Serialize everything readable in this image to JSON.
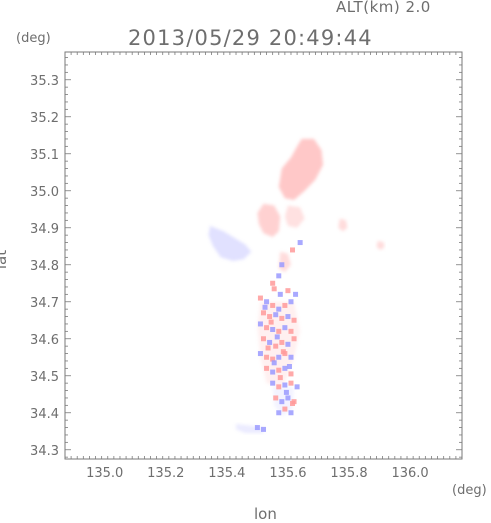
{
  "header": {
    "altitude_label": "ALT(km) 2.0",
    "datetime": "2013/05/29 20:49:44"
  },
  "axes": {
    "x_title": "lon",
    "y_title": "lat",
    "x_unit": "(deg)",
    "y_unit": "(deg)"
  },
  "chart_data": {
    "type": "heatmap",
    "x_range": [
      134.87,
      136.17
    ],
    "y_range": [
      34.275,
      35.375
    ],
    "x_ticks": [
      135.0,
      135.2,
      135.4,
      135.6,
      135.8,
      136.0
    ],
    "x_tick_labels": [
      "135.0",
      "135.2",
      "135.4",
      "135.6",
      "135.8",
      "136.0"
    ],
    "y_ticks": [
      34.3,
      34.4,
      34.5,
      34.6,
      34.7,
      34.8,
      34.9,
      35.0,
      35.1,
      35.2,
      35.3
    ],
    "y_tick_labels": [
      "34.3",
      "34.4",
      "34.5",
      "34.6",
      "34.7",
      "34.8",
      "34.9",
      "35.0",
      "35.1",
      "35.2",
      "35.3"
    ],
    "grid": false,
    "colors": {
      "positive": "#ff9a9a",
      "negative": "#9a9aff",
      "faint_positive": "#ffd6d6",
      "faint_negative": "#dcdcff",
      "axis": "#7a7a7a"
    },
    "regions": [
      {
        "polarity": "positive",
        "strength": 0.55,
        "outline": [
          [
            135.645,
            35.14
          ],
          [
            135.685,
            35.14
          ],
          [
            135.71,
            35.11
          ],
          [
            135.715,
            35.07
          ],
          [
            135.69,
            35.03
          ],
          [
            135.655,
            35.0
          ],
          [
            135.62,
            34.975
          ],
          [
            135.59,
            34.98
          ],
          [
            135.57,
            35.01
          ],
          [
            135.58,
            35.06
          ],
          [
            135.61,
            35.09
          ],
          [
            135.63,
            35.12
          ]
        ]
      },
      {
        "polarity": "positive",
        "strength": 0.45,
        "outline": [
          [
            135.52,
            34.965
          ],
          [
            135.555,
            34.96
          ],
          [
            135.575,
            34.93
          ],
          [
            135.57,
            34.89
          ],
          [
            135.55,
            34.875
          ],
          [
            135.52,
            34.885
          ],
          [
            135.505,
            34.91
          ],
          [
            135.5,
            34.94
          ]
        ]
      },
      {
        "polarity": "positive",
        "strength": 0.3,
        "outline": [
          [
            135.6,
            34.96
          ],
          [
            135.64,
            34.955
          ],
          [
            135.655,
            34.925
          ],
          [
            135.63,
            34.9
          ],
          [
            135.6,
            34.905
          ],
          [
            135.59,
            34.93
          ]
        ]
      },
      {
        "polarity": "negative",
        "strength": 0.3,
        "outline": [
          [
            135.345,
            34.905
          ],
          [
            135.39,
            34.89
          ],
          [
            135.43,
            34.87
          ],
          [
            135.46,
            34.855
          ],
          [
            135.48,
            34.835
          ],
          [
            135.455,
            34.815
          ],
          [
            135.42,
            34.81
          ],
          [
            135.38,
            34.82
          ],
          [
            135.355,
            34.85
          ],
          [
            135.34,
            34.88
          ]
        ]
      },
      {
        "polarity": "positive",
        "strength": 0.35,
        "outline": [
          [
            135.575,
            34.835
          ],
          [
            135.6,
            34.83
          ],
          [
            135.61,
            34.8
          ],
          [
            135.59,
            34.78
          ],
          [
            135.57,
            34.79
          ]
        ]
      },
      {
        "polarity": "positive",
        "strength": 0.35,
        "outline": [
          [
            135.77,
            34.925
          ],
          [
            135.79,
            34.92
          ],
          [
            135.795,
            34.9
          ],
          [
            135.78,
            34.89
          ],
          [
            135.765,
            34.9
          ]
        ]
      },
      {
        "polarity": "positive",
        "strength": 0.35,
        "outline": [
          [
            135.895,
            34.865
          ],
          [
            135.915,
            34.86
          ],
          [
            135.915,
            34.845
          ],
          [
            135.9,
            34.84
          ],
          [
            135.89,
            34.85
          ]
        ]
      },
      {
        "polarity": "positive",
        "strength": 0.15,
        "outline": [
          [
            135.51,
            34.7
          ],
          [
            135.62,
            34.7
          ],
          [
            135.64,
            34.62
          ],
          [
            135.62,
            34.55
          ],
          [
            135.6,
            34.5
          ],
          [
            135.58,
            34.47
          ],
          [
            135.53,
            34.48
          ],
          [
            135.51,
            34.55
          ],
          [
            135.5,
            34.63
          ]
        ]
      },
      {
        "polarity": "negative",
        "strength": 0.12,
        "outline": [
          [
            135.55,
            34.47
          ],
          [
            135.62,
            34.47
          ],
          [
            135.615,
            34.41
          ],
          [
            135.58,
            34.39
          ],
          [
            135.555,
            34.42
          ]
        ]
      },
      {
        "polarity": "negative",
        "strength": 0.2,
        "outline": [
          [
            135.43,
            34.37
          ],
          [
            135.48,
            34.365
          ],
          [
            135.52,
            34.36
          ],
          [
            135.52,
            34.345
          ],
          [
            135.46,
            34.345
          ],
          [
            135.43,
            34.355
          ]
        ]
      }
    ],
    "cells": [
      [
        135.51,
        34.71,
        1
      ],
      [
        135.53,
        34.7,
        -1
      ],
      [
        135.55,
        34.69,
        1
      ],
      [
        135.57,
        34.68,
        -1
      ],
      [
        135.59,
        34.69,
        1
      ],
      [
        135.61,
        34.7,
        -1
      ],
      [
        135.52,
        34.67,
        1
      ],
      [
        135.54,
        34.66,
        1
      ],
      [
        135.56,
        34.665,
        -1
      ],
      [
        135.58,
        34.655,
        1
      ],
      [
        135.6,
        34.66,
        -1
      ],
      [
        135.62,
        34.65,
        1
      ],
      [
        135.51,
        34.64,
        -1
      ],
      [
        135.53,
        34.63,
        1
      ],
      [
        135.55,
        34.625,
        -1
      ],
      [
        135.57,
        34.62,
        1
      ],
      [
        135.59,
        34.63,
        -1
      ],
      [
        135.61,
        34.62,
        1
      ],
      [
        135.52,
        34.6,
        1
      ],
      [
        135.54,
        34.59,
        -1
      ],
      [
        135.56,
        34.58,
        1
      ],
      [
        135.58,
        34.59,
        1
      ],
      [
        135.6,
        34.585,
        -1
      ],
      [
        135.62,
        34.6,
        1
      ],
      [
        135.51,
        34.56,
        -1
      ],
      [
        135.53,
        34.55,
        1
      ],
      [
        135.55,
        34.545,
        1
      ],
      [
        135.57,
        34.55,
        -1
      ],
      [
        135.59,
        34.56,
        1
      ],
      [
        135.61,
        34.55,
        -1
      ],
      [
        135.53,
        34.52,
        1
      ],
      [
        135.55,
        34.51,
        -1
      ],
      [
        135.57,
        34.515,
        1
      ],
      [
        135.59,
        34.52,
        -1
      ],
      [
        135.61,
        34.505,
        1
      ],
      [
        135.55,
        34.48,
        -1
      ],
      [
        135.57,
        34.47,
        1
      ],
      [
        135.59,
        34.475,
        -1
      ],
      [
        135.61,
        34.48,
        1
      ],
      [
        135.63,
        34.47,
        -1
      ],
      [
        135.56,
        34.44,
        1
      ],
      [
        135.58,
        34.43,
        -1
      ],
      [
        135.6,
        34.44,
        -1
      ],
      [
        135.62,
        34.43,
        1
      ],
      [
        135.57,
        34.4,
        -1
      ],
      [
        135.59,
        34.41,
        1
      ],
      [
        135.61,
        34.4,
        -1
      ],
      [
        135.5,
        34.36,
        -1
      ],
      [
        135.52,
        34.355,
        -1
      ],
      [
        135.55,
        34.75,
        1
      ],
      [
        135.57,
        34.77,
        -1
      ],
      [
        135.58,
        34.8,
        -1
      ],
      [
        135.615,
        34.84,
        1
      ],
      [
        135.64,
        34.86,
        -1
      ],
      [
        135.555,
        34.735,
        1
      ],
      [
        135.575,
        34.72,
        -1
      ],
      [
        135.6,
        34.73,
        1
      ],
      [
        135.625,
        34.72,
        -1
      ],
      [
        135.525,
        34.685,
        -1
      ],
      [
        135.545,
        34.645,
        1
      ],
      [
        135.565,
        34.605,
        -1
      ],
      [
        135.585,
        34.565,
        1
      ],
      [
        135.605,
        34.525,
        -1
      ],
      [
        135.535,
        34.575,
        1
      ],
      [
        135.555,
        34.535,
        -1
      ],
      [
        135.575,
        34.495,
        1
      ],
      [
        135.595,
        34.455,
        -1
      ],
      [
        135.615,
        34.425,
        1
      ]
    ]
  }
}
